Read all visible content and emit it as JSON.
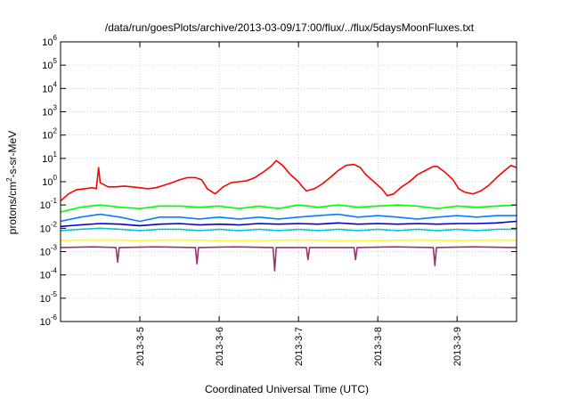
{
  "chart_data": {
    "type": "line",
    "title": "/data/run/goesPlots/archive/2013-03-09/17:00/flux/../flux/5daysMoonFluxes.txt",
    "xlabel": "Coordinated Universal Time (UTC)",
    "ylabel_parts": {
      "before": "protons/cm",
      "sup": "2",
      "after": "-s-sr-MeV"
    },
    "yscale": "log",
    "ylim_exponents": [
      -6,
      6
    ],
    "y_tick_exponents": [
      -6,
      -5,
      -4,
      -3,
      -2,
      -1,
      0,
      1,
      2,
      3,
      4,
      5,
      6
    ],
    "y_tick_base": "10",
    "xlim_days": [
      4.0,
      9.75
    ],
    "x_ticks": [
      {
        "day": 5,
        "label": "2013-3-5"
      },
      {
        "day": 6,
        "label": "2013-3-6"
      },
      {
        "day": 7,
        "label": "2013-3-7"
      },
      {
        "day": 8,
        "label": "2013-3-8"
      },
      {
        "day": 9,
        "label": "2013-3-9"
      }
    ],
    "grid": true,
    "series": [
      {
        "color": "#ff0000",
        "points": [
          [
            4.0,
            0.15
          ],
          [
            4.1,
            0.3
          ],
          [
            4.2,
            0.45
          ],
          [
            4.3,
            0.5
          ],
          [
            4.4,
            0.55
          ],
          [
            4.45,
            0.5
          ],
          [
            4.48,
            4.0
          ],
          [
            4.5,
            0.9
          ],
          [
            4.6,
            0.6
          ],
          [
            4.7,
            0.6
          ],
          [
            4.8,
            0.65
          ],
          [
            4.9,
            0.6
          ],
          [
            5.0,
            0.55
          ],
          [
            5.1,
            0.5
          ],
          [
            5.2,
            0.55
          ],
          [
            5.3,
            0.7
          ],
          [
            5.4,
            0.9
          ],
          [
            5.5,
            1.2
          ],
          [
            5.6,
            1.5
          ],
          [
            5.7,
            1.5
          ],
          [
            5.78,
            1.2
          ],
          [
            5.85,
            0.5
          ],
          [
            5.95,
            0.3
          ],
          [
            6.05,
            0.6
          ],
          [
            6.15,
            0.9
          ],
          [
            6.25,
            1.0
          ],
          [
            6.35,
            1.1
          ],
          [
            6.45,
            1.5
          ],
          [
            6.55,
            2.5
          ],
          [
            6.65,
            4.5
          ],
          [
            6.72,
            8.0
          ],
          [
            6.8,
            5.0
          ],
          [
            6.9,
            2.0
          ],
          [
            7.0,
            1.0
          ],
          [
            7.05,
            0.6
          ],
          [
            7.1,
            0.4
          ],
          [
            7.2,
            0.5
          ],
          [
            7.3,
            0.8
          ],
          [
            7.4,
            1.5
          ],
          [
            7.5,
            3.0
          ],
          [
            7.6,
            5.0
          ],
          [
            7.7,
            5.5
          ],
          [
            7.78,
            4.0
          ],
          [
            7.85,
            2.0
          ],
          [
            7.95,
            1.0
          ],
          [
            8.05,
            0.5
          ],
          [
            8.12,
            0.25
          ],
          [
            8.2,
            0.3
          ],
          [
            8.3,
            0.6
          ],
          [
            8.4,
            1.0
          ],
          [
            8.5,
            2.0
          ],
          [
            8.6,
            3.0
          ],
          [
            8.7,
            4.5
          ],
          [
            8.75,
            4.5
          ],
          [
            8.85,
            2.5
          ],
          [
            8.95,
            1.2
          ],
          [
            9.02,
            0.5
          ],
          [
            9.1,
            0.35
          ],
          [
            9.2,
            0.3
          ],
          [
            9.3,
            0.4
          ],
          [
            9.4,
            0.7
          ],
          [
            9.5,
            1.5
          ],
          [
            9.6,
            3.0
          ],
          [
            9.68,
            5.0
          ],
          [
            9.75,
            4.0
          ]
        ]
      },
      {
        "color": "#00ff00",
        "points": [
          [
            4.0,
            0.05
          ],
          [
            4.25,
            0.08
          ],
          [
            4.5,
            0.1
          ],
          [
            4.75,
            0.08
          ],
          [
            5.0,
            0.07
          ],
          [
            5.25,
            0.09
          ],
          [
            5.5,
            0.09
          ],
          [
            5.75,
            0.08
          ],
          [
            6.0,
            0.09
          ],
          [
            6.25,
            0.07
          ],
          [
            6.5,
            0.09
          ],
          [
            6.75,
            0.07
          ],
          [
            7.0,
            0.1
          ],
          [
            7.25,
            0.08
          ],
          [
            7.5,
            0.1
          ],
          [
            7.75,
            0.08
          ],
          [
            8.0,
            0.09
          ],
          [
            8.25,
            0.1
          ],
          [
            8.5,
            0.09
          ],
          [
            8.75,
            0.07
          ],
          [
            9.0,
            0.09
          ],
          [
            9.25,
            0.08
          ],
          [
            9.5,
            0.09
          ],
          [
            9.75,
            0.1
          ]
        ]
      },
      {
        "color": "#0080ff",
        "points": [
          [
            4.0,
            0.02
          ],
          [
            4.25,
            0.03
          ],
          [
            4.5,
            0.04
          ],
          [
            4.75,
            0.03
          ],
          [
            5.0,
            0.02
          ],
          [
            5.25,
            0.03
          ],
          [
            5.5,
            0.03
          ],
          [
            5.75,
            0.025
          ],
          [
            6.0,
            0.03
          ],
          [
            6.25,
            0.025
          ],
          [
            6.5,
            0.03
          ],
          [
            6.75,
            0.025
          ],
          [
            7.0,
            0.03
          ],
          [
            7.25,
            0.035
          ],
          [
            7.5,
            0.04
          ],
          [
            7.75,
            0.03
          ],
          [
            8.0,
            0.035
          ],
          [
            8.25,
            0.03
          ],
          [
            8.5,
            0.025
          ],
          [
            8.75,
            0.03
          ],
          [
            9.0,
            0.035
          ],
          [
            9.25,
            0.03
          ],
          [
            9.5,
            0.035
          ],
          [
            9.75,
            0.035
          ]
        ]
      },
      {
        "color": "#00c8c8",
        "points": [
          [
            4.0,
            0.008
          ],
          [
            4.25,
            0.009
          ],
          [
            4.5,
            0.01
          ],
          [
            4.75,
            0.009
          ],
          [
            5.0,
            0.008
          ],
          [
            5.25,
            0.009
          ],
          [
            5.5,
            0.009
          ],
          [
            5.75,
            0.008
          ],
          [
            6.0,
            0.009
          ],
          [
            6.25,
            0.008
          ],
          [
            6.5,
            0.009
          ],
          [
            6.75,
            0.008
          ],
          [
            7.0,
            0.009
          ],
          [
            7.25,
            0.008
          ],
          [
            7.5,
            0.009
          ],
          [
            7.75,
            0.008
          ],
          [
            8.0,
            0.009
          ],
          [
            8.25,
            0.008
          ],
          [
            8.5,
            0.009
          ],
          [
            8.75,
            0.008
          ],
          [
            9.0,
            0.009
          ],
          [
            9.25,
            0.008
          ],
          [
            9.5,
            0.009
          ],
          [
            9.75,
            0.009
          ]
        ]
      },
      {
        "color": "#0000cc",
        "points": [
          [
            4.0,
            0.012
          ],
          [
            4.25,
            0.014
          ],
          [
            4.5,
            0.016
          ],
          [
            4.75,
            0.015
          ],
          [
            5.0,
            0.013
          ],
          [
            5.25,
            0.015
          ],
          [
            5.5,
            0.016
          ],
          [
            5.75,
            0.014
          ],
          [
            6.0,
            0.015
          ],
          [
            6.25,
            0.014
          ],
          [
            6.5,
            0.016
          ],
          [
            6.75,
            0.015
          ],
          [
            7.0,
            0.016
          ],
          [
            7.25,
            0.015
          ],
          [
            7.5,
            0.017
          ],
          [
            7.75,
            0.015
          ],
          [
            8.0,
            0.016
          ],
          [
            8.25,
            0.015
          ],
          [
            8.5,
            0.016
          ],
          [
            8.75,
            0.015
          ],
          [
            9.0,
            0.016
          ],
          [
            9.25,
            0.016
          ],
          [
            9.5,
            0.017
          ],
          [
            9.75,
            0.02
          ]
        ]
      },
      {
        "color": "#ffff00",
        "points": [
          [
            4.0,
            0.003
          ],
          [
            4.5,
            0.0032
          ],
          [
            5.0,
            0.003
          ],
          [
            5.5,
            0.0031
          ],
          [
            6.0,
            0.003
          ],
          [
            6.5,
            0.003
          ],
          [
            7.0,
            0.0031
          ],
          [
            7.5,
            0.003
          ],
          [
            8.0,
            0.003
          ],
          [
            8.5,
            0.0031
          ],
          [
            9.0,
            0.003
          ],
          [
            9.5,
            0.0031
          ],
          [
            9.75,
            0.003
          ]
        ]
      },
      {
        "color": "#99336f",
        "points": [
          [
            4.0,
            0.0015
          ],
          [
            4.4,
            0.0016
          ],
          [
            4.7,
            0.0015
          ],
          [
            4.72,
            0.00035
          ],
          [
            4.74,
            0.0015
          ],
          [
            5.2,
            0.0016
          ],
          [
            5.7,
            0.0015
          ],
          [
            5.72,
            0.0003
          ],
          [
            5.74,
            0.0015
          ],
          [
            6.2,
            0.0016
          ],
          [
            6.68,
            0.0015
          ],
          [
            6.7,
            0.00015
          ],
          [
            6.72,
            0.0015
          ],
          [
            7.1,
            0.0015
          ],
          [
            7.12,
            0.00045
          ],
          [
            7.14,
            0.0015
          ],
          [
            7.7,
            0.0015
          ],
          [
            7.72,
            0.00045
          ],
          [
            7.74,
            0.0015
          ],
          [
            8.2,
            0.0016
          ],
          [
            8.7,
            0.0015
          ],
          [
            8.72,
            0.00025
          ],
          [
            8.74,
            0.0015
          ],
          [
            9.2,
            0.0016
          ],
          [
            9.75,
            0.0015
          ]
        ]
      }
    ]
  }
}
